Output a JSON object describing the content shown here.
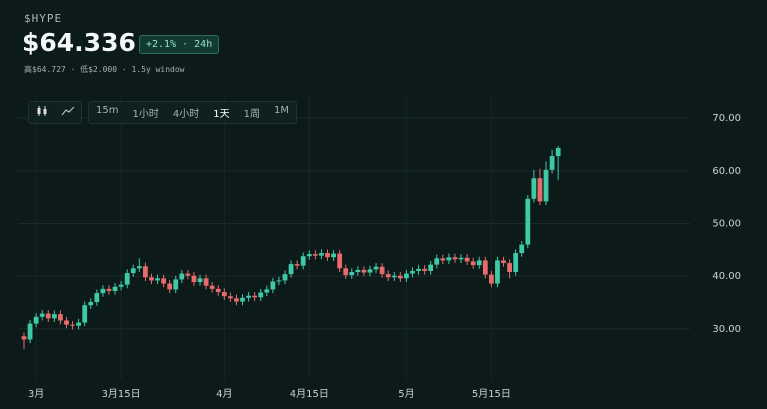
{
  "header": {
    "symbol": "$HYPE",
    "price": "$64.336",
    "change": "+2.1% · 24h",
    "stats": "高$64.727 · 低$2.000 · 1.5y window"
  },
  "toolbar": {
    "intervals": [
      "15m",
      "1小时",
      "4小时",
      "1天",
      "1周",
      "1M"
    ],
    "selected": "1天"
  },
  "chart_data": {
    "type": "candlestick",
    "categories": [
      null,
      null,
      "3月",
      null,
      null,
      null,
      null,
      null,
      null,
      null,
      null,
      null,
      null,
      null,
      null,
      null,
      "3月15日",
      null,
      null,
      null,
      null,
      null,
      null,
      null,
      null,
      null,
      null,
      null,
      null,
      null,
      null,
      null,
      null,
      "4月",
      null,
      null,
      null,
      null,
      null,
      null,
      null,
      null,
      null,
      null,
      null,
      null,
      null,
      "4月15日",
      null,
      null,
      null,
      null,
      null,
      null,
      null,
      null,
      null,
      null,
      null,
      null,
      null,
      null,
      null,
      "5月",
      null,
      null,
      null,
      null,
      null,
      null,
      null,
      null,
      null,
      null,
      null,
      null,
      null,
      "5月15日",
      null,
      null,
      null,
      null,
      null,
      null,
      null,
      null,
      null,
      null,
      null
    ],
    "open": [
      28.6,
      28.0,
      31.0,
      32.3,
      32.9,
      32.0,
      32.8,
      31.6,
      30.8,
      30.6,
      31.2,
      34.5,
      35.1,
      36.8,
      37.6,
      37.2,
      38.0,
      38.4,
      40.6,
      41.5,
      41.9,
      39.8,
      39.2,
      39.6,
      38.6,
      37.5,
      39.4,
      40.5,
      40.1,
      38.9,
      39.6,
      38.2,
      37.6,
      37.0,
      36.2,
      35.8,
      35.2,
      35.9,
      36.3,
      36.0,
      36.9,
      37.5,
      39.0,
      39.2,
      40.4,
      42.3,
      42.0,
      43.8,
      44.2,
      43.9,
      44.4,
      43.6,
      44.3,
      41.5,
      40.2,
      40.8,
      41.2,
      40.7,
      41.3,
      41.8,
      40.4,
      39.8,
      40.1,
      39.6,
      40.5,
      41.0,
      41.4,
      41.0,
      42.2,
      43.4,
      43.0,
      43.6,
      43.2,
      43.5,
      42.8,
      42.1,
      43.0,
      40.3,
      38.6,
      43.0,
      42.5,
      40.8,
      44.4,
      46.0,
      54.7,
      58.6,
      54.2,
      60.2,
      62.8
    ],
    "high": [
      29.3,
      31.7,
      33.0,
      33.6,
      33.6,
      33.5,
      33.5,
      32.3,
      31.5,
      31.9,
      35.2,
      35.8,
      37.5,
      38.3,
      38.3,
      38.7,
      39.1,
      41.3,
      42.2,
      43.4,
      42.6,
      40.5,
      40.3,
      40.3,
      39.3,
      40.1,
      41.2,
      41.2,
      40.8,
      40.3,
      40.3,
      38.9,
      38.3,
      37.7,
      36.9,
      36.5,
      36.6,
      37.0,
      37.0,
      37.6,
      38.2,
      39.7,
      39.9,
      41.1,
      43.0,
      43.0,
      44.5,
      44.9,
      44.9,
      45.1,
      45.1,
      45.0,
      45.0,
      42.2,
      41.5,
      41.9,
      41.9,
      42.0,
      42.5,
      42.5,
      41.1,
      40.8,
      40.8,
      41.2,
      41.7,
      42.1,
      42.1,
      42.9,
      44.1,
      44.1,
      44.3,
      44.3,
      44.2,
      44.2,
      43.5,
      43.7,
      43.7,
      41.0,
      43.7,
      43.7,
      43.2,
      45.1,
      46.7,
      55.4,
      60.2,
      60.4,
      61.8,
      64.0,
      64.727
    ],
    "low": [
      26.2,
      27.3,
      30.3,
      31.6,
      31.3,
      31.3,
      30.9,
      30.1,
      29.9,
      29.9,
      30.5,
      33.8,
      34.4,
      36.1,
      36.5,
      36.5,
      37.3,
      37.7,
      39.9,
      40.8,
      39.1,
      38.5,
      38.5,
      37.9,
      36.8,
      36.8,
      38.7,
      39.4,
      38.2,
      38.2,
      37.5,
      36.9,
      36.3,
      35.5,
      35.1,
      34.5,
      34.5,
      35.2,
      35.3,
      35.3,
      36.2,
      36.8,
      38.3,
      38.5,
      39.7,
      41.3,
      41.3,
      43.1,
      43.2,
      43.2,
      42.9,
      42.9,
      40.8,
      39.5,
      39.5,
      40.1,
      40.0,
      40.0,
      40.6,
      39.7,
      39.1,
      39.1,
      38.9,
      38.9,
      39.8,
      40.3,
      40.3,
      40.3,
      41.5,
      42.3,
      42.3,
      42.5,
      42.5,
      42.1,
      41.4,
      41.4,
      39.6,
      37.9,
      37.9,
      41.8,
      39.6,
      40.1,
      43.7,
      45.3,
      54.0,
      53.5,
      53.5,
      59.5,
      58.3
    ],
    "close": [
      28.0,
      31.0,
      32.3,
      32.9,
      32.0,
      32.8,
      31.6,
      30.8,
      30.6,
      31.2,
      34.5,
      35.1,
      36.8,
      37.6,
      37.2,
      38.0,
      38.4,
      40.6,
      41.5,
      41.9,
      39.8,
      39.2,
      39.6,
      38.6,
      37.5,
      39.4,
      40.5,
      40.1,
      38.9,
      39.6,
      38.2,
      37.6,
      37.0,
      36.2,
      35.8,
      35.2,
      35.9,
      36.3,
      36.0,
      36.9,
      37.5,
      39.0,
      39.2,
      40.4,
      42.3,
      42.0,
      43.8,
      44.2,
      43.9,
      44.4,
      43.6,
      44.3,
      41.5,
      40.2,
      40.8,
      41.2,
      40.7,
      41.3,
      41.8,
      40.4,
      39.8,
      40.1,
      39.6,
      40.5,
      41.0,
      41.4,
      41.0,
      42.2,
      43.4,
      43.0,
      43.6,
      43.2,
      43.5,
      42.8,
      42.1,
      43.0,
      40.3,
      38.6,
      43.0,
      42.5,
      40.8,
      44.4,
      46.0,
      54.7,
      58.6,
      54.2,
      60.2,
      62.8,
      64.336
    ],
    "up_color": "#3ec9a7",
    "down_color": "#e86a6a",
    "ylim": [
      20.3,
      74.4
    ],
    "yticks": [
      {
        "value": 30,
        "label": "30.00"
      },
      {
        "value": 40,
        "label": "40.00"
      },
      {
        "value": 50,
        "label": "50.00"
      },
      {
        "value": 60,
        "label": "60.00"
      },
      {
        "value": 70,
        "label": "70.00"
      }
    ],
    "grid": true
  }
}
